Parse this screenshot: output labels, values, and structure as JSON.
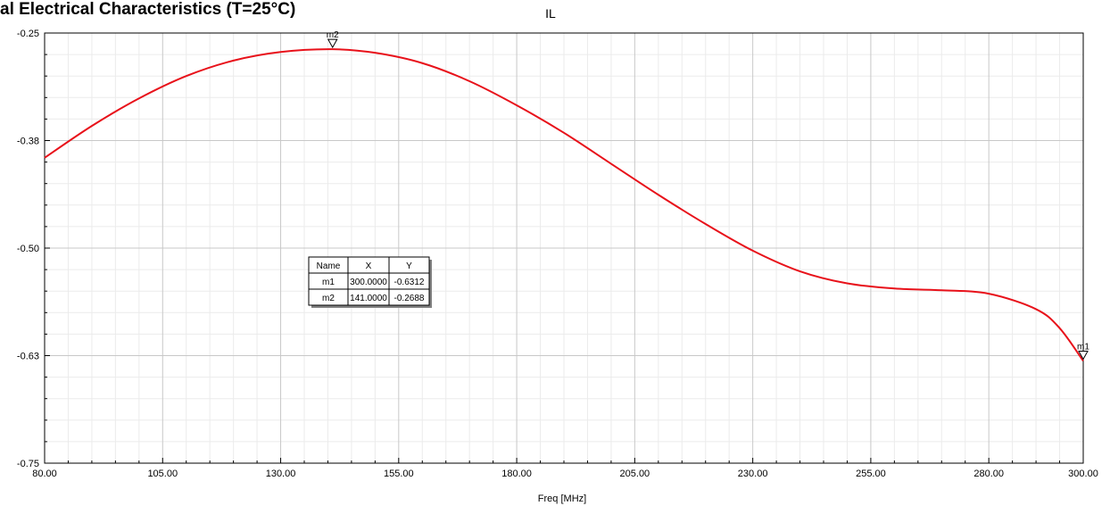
{
  "header": {
    "title": "al Electrical Characteristics (T=25°C)"
  },
  "chart_data": {
    "type": "line",
    "title": "IL",
    "xlabel": "Freq [MHz]",
    "ylabel": "",
    "xlim": [
      80,
      300
    ],
    "ylim": [
      -0.75,
      -0.25
    ],
    "x_ticks": [
      "80.00",
      "105.00",
      "130.00",
      "155.00",
      "180.00",
      "205.00",
      "230.00",
      "255.00",
      "280.00",
      "300.00"
    ],
    "y_ticks": [
      "-0.25",
      "-0.38",
      "-0.50",
      "-0.63",
      "-0.75"
    ],
    "grid": true,
    "series": [
      {
        "color": "#e8111a",
        "x": [
          80,
          90,
          100,
          110,
          120,
          130,
          141,
          150,
          160,
          170,
          180,
          190,
          200,
          210,
          220,
          230,
          240,
          250,
          260,
          270,
          280,
          290,
          295,
          300
        ],
        "y": [
          -0.395,
          -0.358,
          -0.326,
          -0.3,
          -0.282,
          -0.272,
          -0.2688,
          -0.273,
          -0.285,
          -0.306,
          -0.334,
          -0.366,
          -0.402,
          -0.438,
          -0.472,
          -0.503,
          -0.527,
          -0.541,
          -0.547,
          -0.549,
          -0.553,
          -0.571,
          -0.593,
          -0.6312
        ]
      }
    ],
    "markers": [
      {
        "name": "m1",
        "x": 300.0,
        "y": -0.6312
      },
      {
        "name": "m2",
        "x": 141.0,
        "y": -0.2688
      }
    ],
    "marker_table": {
      "headers": [
        "Name",
        "X",
        "Y"
      ],
      "rows": [
        [
          "m1",
          "300.0000",
          "-0.6312"
        ],
        [
          "m2",
          "141.0000",
          "-0.2688"
        ]
      ]
    }
  }
}
